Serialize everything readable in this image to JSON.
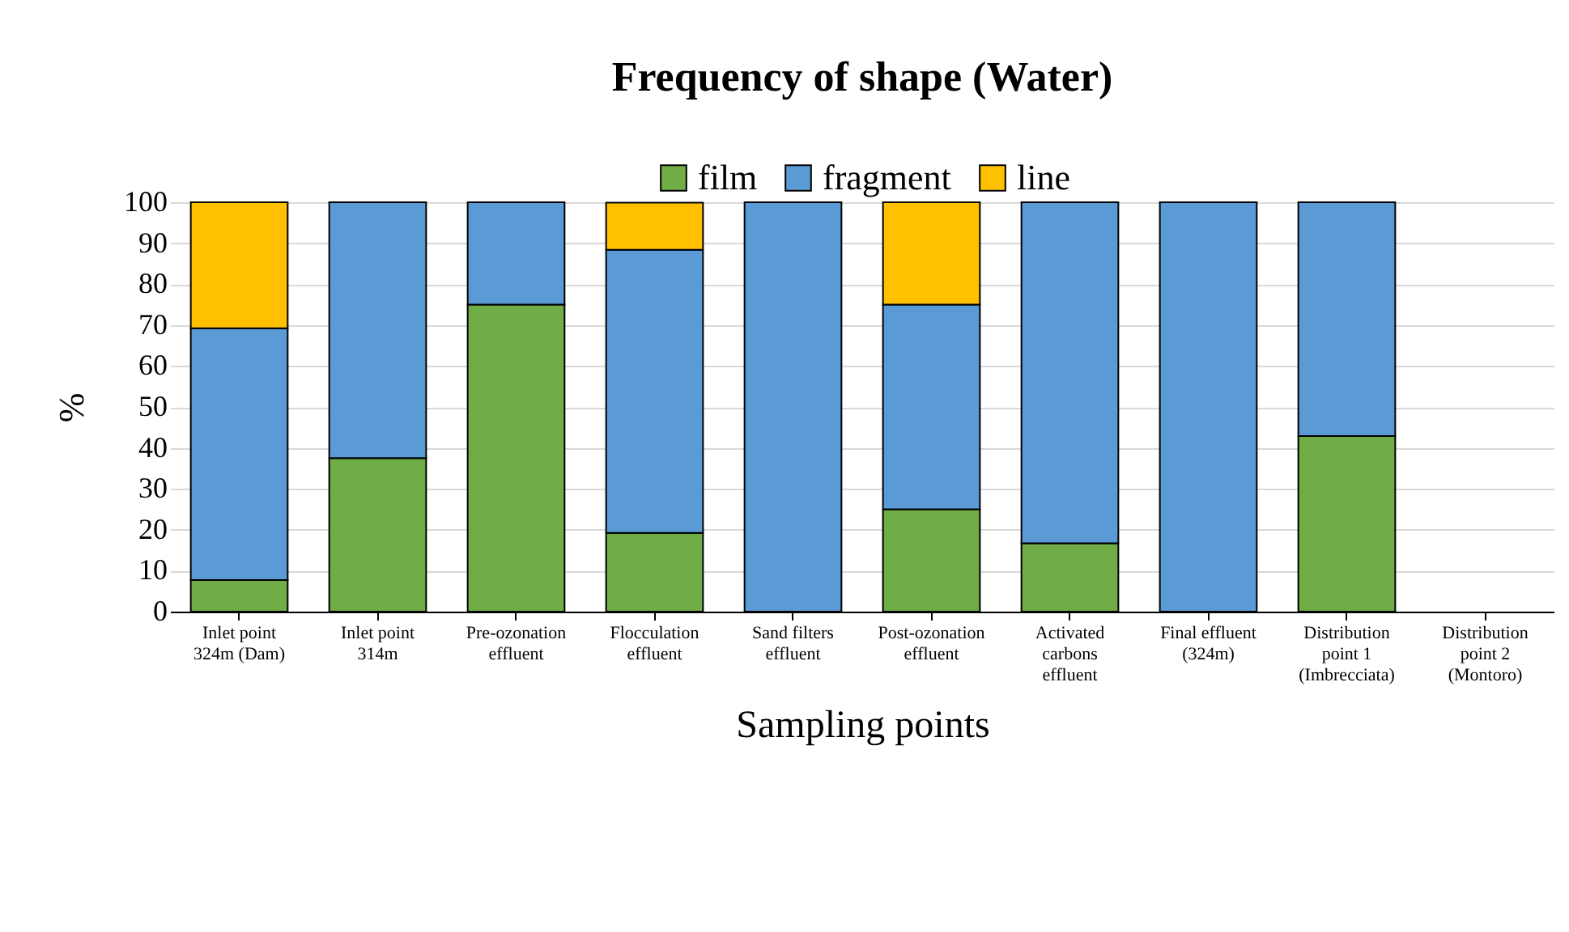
{
  "chart_data": {
    "type": "bar",
    "title": "Frequency of shape (Water)",
    "xlabel": "Sampling points",
    "ylabel": "%",
    "categories": [
      "Inlet point\n324m (Dam)",
      "Inlet point\n314m",
      "Pre-ozonation\neffluent",
      "Flocculation\neffluent",
      "Sand filters\neffluent",
      "Post-ozonation\neffluent",
      "Activated\ncarbons\neffluent",
      "Final effluent\n(324m)",
      "Distribution\npoint 1\n(Imbrecciata)",
      "Distribution\npoint 2\n(Montoro)"
    ],
    "series": [
      {
        "name": "film",
        "color": "#70ad47",
        "values": [
          7.7,
          37.5,
          75,
          19.2,
          null,
          25,
          16.7,
          null,
          42.9,
          null
        ]
      },
      {
        "name": "fragment",
        "color": "#5b9bd5",
        "values": [
          61.5,
          62.5,
          25,
          69.2,
          100,
          50,
          83.3,
          100,
          57.1,
          null
        ]
      },
      {
        "name": "line",
        "color": "#ffc000",
        "values": [
          30.8,
          null,
          null,
          11.5,
          null,
          25,
          null,
          null,
          null,
          null
        ]
      }
    ],
    "stacked": true,
    "ylim": [
      0,
      100
    ],
    "yticks": [
      0,
      10,
      20,
      30,
      40,
      50,
      60,
      70,
      80,
      90,
      100
    ],
    "grid": "y",
    "legend": "top"
  }
}
